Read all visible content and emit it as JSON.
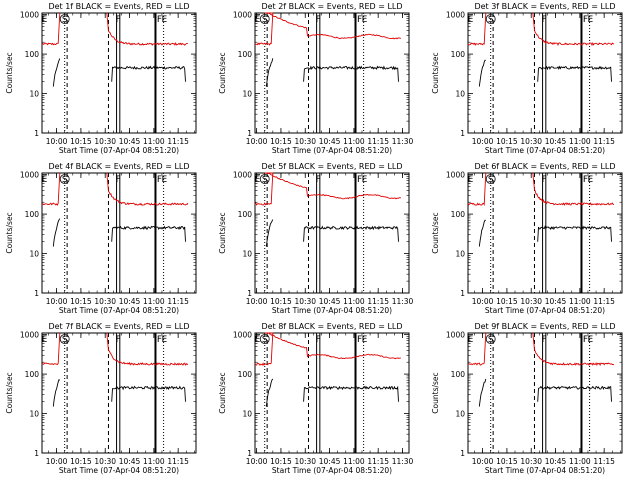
{
  "x_ticks": [
    "10:00",
    "10:15",
    "10:30",
    "10:45",
    "11:00",
    "11:15",
    "11:30"
  ],
  "y_ticks": [
    "1",
    "10",
    "100",
    "1000"
  ],
  "xlabel": "Start Time (07-Apr-04 08:51:20)",
  "ylabel": "Counts/sec",
  "markers": {
    "E": "E",
    "S": "S",
    "F": "F"
  },
  "colors": {
    "events": "#000000",
    "lld": "#e00000"
  },
  "chart_data": [
    {
      "type": "line",
      "title": "Det 1f BLACK = Events, RED = LLD",
      "xlim_min": [
        0,
        95
      ],
      "ylim": [
        1,
        1100
      ],
      "shift": 0
    },
    {
      "type": "line",
      "title": "Det 2f BLACK = Events, RED = LLD",
      "xlim_min": [
        0,
        95
      ],
      "ylim": [
        1,
        1100
      ],
      "shift": -8
    },
    {
      "type": "line",
      "title": "Det 3f BLACK = Events, RED = LLD",
      "xlim_min": [
        0,
        95
      ],
      "ylim": [
        1,
        1100
      ],
      "shift": 0
    },
    {
      "type": "line",
      "title": "Det 4f BLACK = Events, RED = LLD",
      "xlim_min": [
        0,
        95
      ],
      "ylim": [
        1,
        1100
      ],
      "shift": 0
    },
    {
      "type": "line",
      "title": "Det 5f BLACK = Events, RED = LLD",
      "xlim_min": [
        0,
        95
      ],
      "ylim": [
        1,
        1100
      ],
      "shift": -8
    },
    {
      "type": "line",
      "title": "Det 6f BLACK = Events, RED = LLD",
      "xlim_min": [
        0,
        95
      ],
      "ylim": [
        1,
        1100
      ],
      "shift": 0
    },
    {
      "type": "line",
      "title": "Det 7f BLACK = Events, RED = LLD",
      "xlim_min": [
        0,
        95
      ],
      "ylim": [
        1,
        1100
      ],
      "shift": 0
    },
    {
      "type": "line",
      "title": "Det 8f BLACK = Events, RED = LLD",
      "xlim_min": [
        0,
        95
      ],
      "ylim": [
        1,
        1100
      ],
      "shift": -8
    },
    {
      "type": "line",
      "title": "Det 9f BLACK = Events, RED = LLD",
      "xlim_min": [
        0,
        95
      ],
      "ylim": [
        1,
        1100
      ],
      "shift": 0
    }
  ]
}
